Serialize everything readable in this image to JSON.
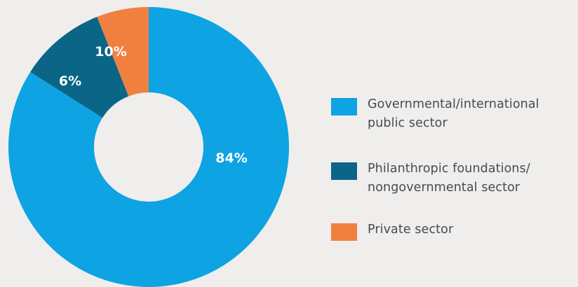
{
  "chart_data": {
    "type": "pie",
    "donut": true,
    "categories": [
      "Governmental/international\npublic sector",
      "Philanthropic foundations/\nnongovernmental sector",
      "Private sector"
    ],
    "values": [
      84,
      10,
      6
    ],
    "data_labels": [
      "84%",
      "10%",
      "6%"
    ],
    "colors": [
      "#0ea3e3",
      "#0a6587",
      "#f08040"
    ],
    "legend_position": "right",
    "title": ""
  }
}
